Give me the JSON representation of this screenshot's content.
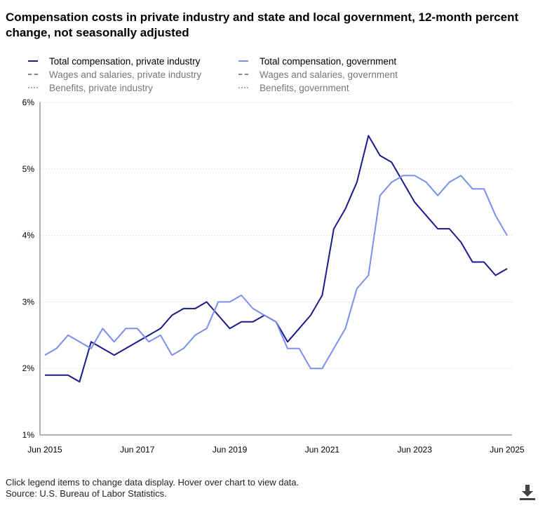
{
  "title": "Compensation costs in private industry and state and local government, 12-month percent change, not seasonally adjusted",
  "legend": [
    {
      "label": "Total compensation, private industry",
      "color": "#1a1a8c",
      "style": "solid",
      "active": true
    },
    {
      "label": "Total compensation, government",
      "color": "#7b8ff0",
      "style": "solid",
      "active": true
    },
    {
      "label": "Wages and salaries, private industry",
      "color": "#888888",
      "style": "dashed",
      "active": false
    },
    {
      "label": "Wages and salaries, government",
      "color": "#888888",
      "style": "dashed",
      "active": false
    },
    {
      "label": "Benefits, private industry",
      "color": "#aaaaaa",
      "style": "dotted",
      "active": false
    },
    {
      "label": "Benefits, government",
      "color": "#aaaaaa",
      "style": "dotted",
      "active": false
    }
  ],
  "chart_data": {
    "type": "line",
    "title": "Compensation costs in private industry and state and local government, 12-month percent change, not seasonally adjusted",
    "x": [
      "Jun 2015",
      "Sep 2015",
      "Dec 2015",
      "Mar 2016",
      "Jun 2016",
      "Sep 2016",
      "Dec 2016",
      "Mar 2017",
      "Jun 2017",
      "Sep 2017",
      "Dec 2017",
      "Mar 2018",
      "Jun 2018",
      "Sep 2018",
      "Dec 2018",
      "Mar 2019",
      "Jun 2019",
      "Sep 2019",
      "Dec 2019",
      "Mar 2020",
      "Jun 2020",
      "Sep 2020",
      "Dec 2020",
      "Mar 2021",
      "Jun 2021",
      "Sep 2021",
      "Dec 2021",
      "Mar 2022",
      "Jun 2022",
      "Sep 2022",
      "Dec 2022",
      "Mar 2023",
      "Jun 2023",
      "Sep 2023",
      "Dec 2023",
      "Mar 2024",
      "Jun 2024",
      "Sep 2024",
      "Dec 2024",
      "Mar 2025",
      "Jun 2025"
    ],
    "x_tick_labels": [
      "Jun 2015",
      "Jun 2017",
      "Jun 2019",
      "Jun 2021",
      "Jun 2023",
      "Jun 2025"
    ],
    "y_tick_labels": [
      "1%",
      "2%",
      "3%",
      "4%",
      "5%",
      "6%"
    ],
    "ylim": [
      1,
      6
    ],
    "xlabel": "",
    "ylabel": "",
    "series": [
      {
        "name": "Total compensation, private industry",
        "color": "#1a1a8c",
        "values": [
          1.9,
          1.9,
          1.9,
          1.8,
          2.4,
          2.3,
          2.2,
          2.3,
          2.4,
          2.5,
          2.6,
          2.8,
          2.9,
          2.9,
          3.0,
          2.8,
          2.6,
          2.7,
          2.7,
          2.8,
          2.7,
          2.4,
          2.6,
          2.8,
          3.1,
          4.1,
          4.4,
          4.8,
          5.5,
          5.2,
          5.1,
          4.8,
          4.5,
          4.3,
          4.1,
          4.1,
          3.9,
          3.6,
          3.6,
          3.4,
          3.5
        ]
      },
      {
        "name": "Total compensation, government",
        "color": "#7b8ff0",
        "values": [
          2.2,
          2.3,
          2.5,
          2.4,
          2.3,
          2.6,
          2.4,
          2.6,
          2.6,
          2.4,
          2.5,
          2.2,
          2.3,
          2.5,
          2.6,
          3.0,
          3.0,
          3.1,
          2.9,
          2.8,
          2.7,
          2.3,
          2.3,
          2.0,
          2.0,
          2.3,
          2.6,
          3.2,
          3.4,
          4.6,
          4.8,
          4.9,
          4.9,
          4.8,
          4.6,
          4.8,
          4.9,
          4.7,
          4.7,
          4.3,
          4.0
        ]
      }
    ]
  },
  "footer": {
    "note": "Click legend items to change data display. Hover over chart to view data.",
    "source": "Source: U.S. Bureau of Labor Statistics."
  },
  "icons": {
    "download": "download-icon"
  }
}
